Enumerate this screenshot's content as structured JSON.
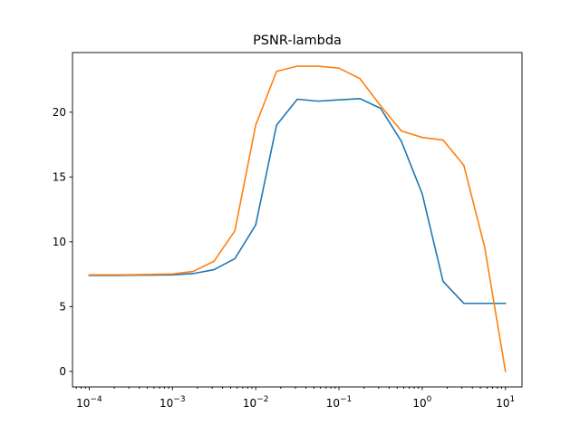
{
  "chart_data": {
    "type": "line",
    "title": "PSNR-lambda",
    "xlabel": "",
    "ylabel": "",
    "x_scale": "log",
    "xlim": [
      6.3e-05,
      15.8
    ],
    "ylim": [
      -1.2,
      24.6
    ],
    "x_ticks": [
      {
        "value": 0.0001,
        "base": "10",
        "exp": "−4"
      },
      {
        "value": 0.001,
        "base": "10",
        "exp": "−3"
      },
      {
        "value": 0.01,
        "base": "10",
        "exp": "−2"
      },
      {
        "value": 0.1,
        "base": "10",
        "exp": "−1"
      },
      {
        "value": 1,
        "base": "10",
        "exp": "0"
      },
      {
        "value": 10,
        "base": "10",
        "exp": "1"
      }
    ],
    "y_ticks": [
      {
        "value": 0,
        "label": "0"
      },
      {
        "value": 5,
        "label": "5"
      },
      {
        "value": 10,
        "label": "10"
      },
      {
        "value": 15,
        "label": "15"
      },
      {
        "value": 20,
        "label": "20"
      }
    ],
    "grid": false,
    "legend": "none",
    "x": [
      0.0001,
      0.000178,
      0.000316,
      0.000562,
      0.001,
      0.00178,
      0.00316,
      0.00562,
      0.01,
      0.0178,
      0.0316,
      0.0562,
      0.1,
      0.178,
      0.316,
      0.562,
      1,
      1.78,
      3.16,
      5.62,
      10
    ],
    "series": [
      {
        "color": "#1f77b4",
        "values": [
          7.4,
          7.4,
          7.42,
          7.43,
          7.45,
          7.55,
          7.85,
          8.7,
          11.3,
          19.0,
          21.0,
          20.85,
          20.95,
          21.05,
          20.3,
          17.75,
          13.7,
          6.95,
          5.25,
          5.25,
          5.25
        ]
      },
      {
        "color": "#ff7f0e",
        "values": [
          7.45,
          7.45,
          7.46,
          7.48,
          7.52,
          7.72,
          8.5,
          10.85,
          19.0,
          23.15,
          23.55,
          23.55,
          23.4,
          22.6,
          20.5,
          18.55,
          18.05,
          17.85,
          15.9,
          9.6,
          0.0
        ]
      }
    ]
  }
}
